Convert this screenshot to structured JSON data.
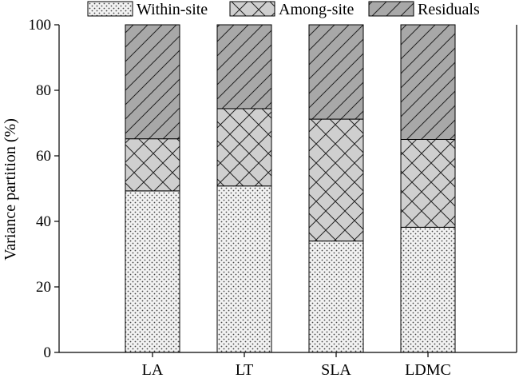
{
  "chart_data": {
    "type": "bar",
    "stacked": true,
    "title": "",
    "xlabel": "",
    "ylabel": "Variance partition (%)",
    "ylim": [
      0,
      100
    ],
    "yticks": [
      0,
      20,
      40,
      60,
      80,
      100
    ],
    "categories": [
      "LA",
      "LT",
      "SLA",
      "LDMC"
    ],
    "series": [
      {
        "name": "Within-site",
        "pattern": "dots",
        "color": "#f0f0f0",
        "values": [
          49.3,
          50.8,
          34.0,
          38.2
        ]
      },
      {
        "name": "Among-site",
        "pattern": "crosshatch",
        "color": "#cccccc",
        "values": [
          15.9,
          23.6,
          37.2,
          26.8
        ]
      },
      {
        "name": "Residuals",
        "pattern": "diagonal",
        "color": "#a9a9a9",
        "values": [
          34.8,
          25.6,
          28.8,
          35.0
        ]
      }
    ],
    "grid": false,
    "legend_position": "top"
  }
}
